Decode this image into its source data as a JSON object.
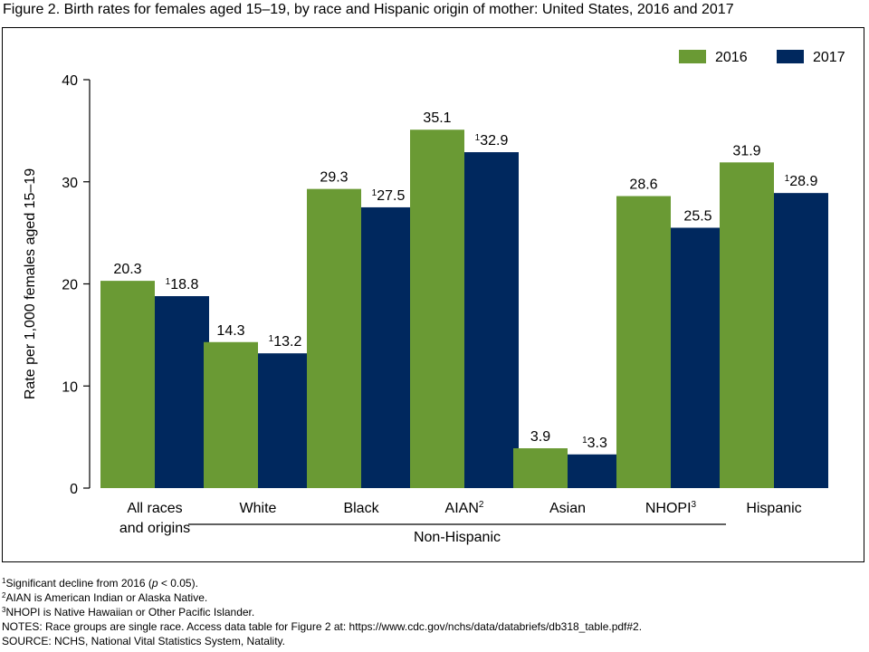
{
  "title": "Figure 2. Birth rates for females aged 15–19, by race and Hispanic origin of mother: United States, 2016 and 2017",
  "chart_data": {
    "type": "bar",
    "ylabel": "Rate per 1,000 females aged 15–19",
    "ylim": [
      0,
      40
    ],
    "yticks": [
      0,
      10,
      20,
      30,
      40
    ],
    "grid": false,
    "legend_position": "top-right",
    "categories": [
      {
        "label": [
          "All races",
          "and origins"
        ],
        "sup": ""
      },
      {
        "label": [
          "White"
        ],
        "sup": ""
      },
      {
        "label": [
          "Black"
        ],
        "sup": ""
      },
      {
        "label": [
          "AIAN"
        ],
        "sup": "2"
      },
      {
        "label": [
          "Asian"
        ],
        "sup": ""
      },
      {
        "label": [
          "NHOPI"
        ],
        "sup": "3"
      },
      {
        "label": [
          "Hispanic"
        ],
        "sup": ""
      }
    ],
    "group_label": {
      "text": "Non-Hispanic",
      "from_category": 1,
      "to_category": 5
    },
    "series": [
      {
        "name": "2016",
        "color": "#6a9a34",
        "values": [
          20.3,
          14.3,
          29.3,
          35.1,
          3.9,
          28.6,
          31.9
        ],
        "markers": [
          "",
          "",
          "",
          "",
          "",
          "",
          ""
        ]
      },
      {
        "name": "2017",
        "color": "#00285e",
        "values": [
          18.8,
          13.2,
          27.5,
          32.9,
          3.3,
          25.5,
          28.9
        ],
        "markers": [
          "1",
          "1",
          "1",
          "1",
          "1",
          "",
          "1"
        ]
      }
    ]
  },
  "notes": {
    "note1": {
      "sup": "1",
      "pre": "Significant decline from 2016 (",
      "italic": "p",
      "post": " < 0.05)."
    },
    "note2": {
      "sup": "2",
      "text": "AIAN is American Indian or Alaska Native."
    },
    "note3": {
      "sup": "3",
      "text": "NHOPI is Native Hawaiian or Other Pacific Islander."
    },
    "notes_line": "NOTES: Race groups are single race. Access data table for Figure 2 at: https://www.cdc.gov/nchs/data/databriefs/db318_table.pdf#2.",
    "source_line": "SOURCE: NCHS, National Vital Statistics System, Natality."
  }
}
